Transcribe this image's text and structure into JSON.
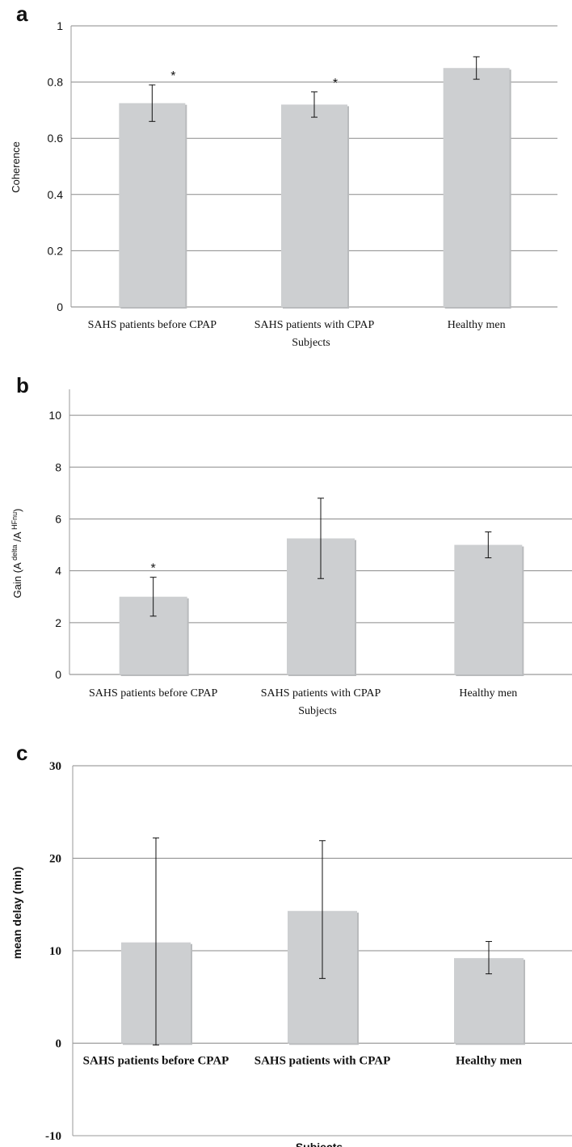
{
  "colors": {
    "bar": "#cdcfd1",
    "bar_shadow": "#b9bbbd",
    "grid": "#8a8a8a",
    "axis": "#9a9a9a",
    "error": "#111111"
  },
  "chart_data": [
    {
      "panel": "a",
      "type": "bar",
      "categories": [
        "SAHS patients before CPAP",
        "SAHS patients with CPAP",
        "Healthy men"
      ],
      "values": [
        0.725,
        0.72,
        0.85
      ],
      "error_low": [
        0.66,
        0.675,
        0.81
      ],
      "error_high": [
        0.79,
        0.765,
        0.89
      ],
      "significance": [
        "*",
        "*",
        ""
      ],
      "xlabel": "Subjects",
      "ylabel": "Coherence",
      "ylim": [
        0,
        1
      ],
      "yticks": [
        "0",
        "0.2",
        "0.4",
        "0.6",
        "0.8",
        "1"
      ],
      "ytick_values": [
        0,
        0.2,
        0.4,
        0.6,
        0.8,
        1
      ],
      "grid": true
    },
    {
      "panel": "b",
      "type": "bar",
      "categories": [
        "SAHS patients before CPAP",
        "SAHS patients with CPAP",
        "Healthy men"
      ],
      "values": [
        3.0,
        5.25,
        5.0
      ],
      "error_low": [
        2.25,
        3.7,
        4.5
      ],
      "error_high": [
        3.75,
        6.8,
        5.5
      ],
      "significance": [
        "*",
        "",
        ""
      ],
      "xlabel": "Subjects",
      "ylabel": "Gain (A",
      "ylabel_sup1": "delta",
      "ylabel_mid": "/A",
      "ylabel_sup2": "HFnu",
      "ylabel_end": ")",
      "ylim": [
        0,
        11
      ],
      "yticks": [
        "0",
        "2",
        "4",
        "6",
        "8",
        "10"
      ],
      "ytick_values": [
        0,
        2,
        4,
        6,
        8,
        10
      ],
      "grid": true
    },
    {
      "panel": "c",
      "type": "bar",
      "categories": [
        "SAHS patients before CPAP",
        "SAHS patients with CPAP",
        "Healthy men"
      ],
      "values": [
        10.9,
        14.3,
        9.2
      ],
      "error_low": [
        -0.2,
        7.0,
        7.5
      ],
      "error_high": [
        22.2,
        21.9,
        11.0
      ],
      "significance": [
        "",
        "",
        ""
      ],
      "xlabel": "Subjects",
      "ylabel": "mean delay (min)",
      "ylim": [
        -10,
        30
      ],
      "yticks": [
        "-10",
        "0",
        "10",
        "20",
        "30"
      ],
      "ytick_values": [
        -10,
        0,
        10,
        20,
        30
      ],
      "grid": true
    }
  ],
  "panel_letters": [
    "a",
    "b",
    "c"
  ]
}
